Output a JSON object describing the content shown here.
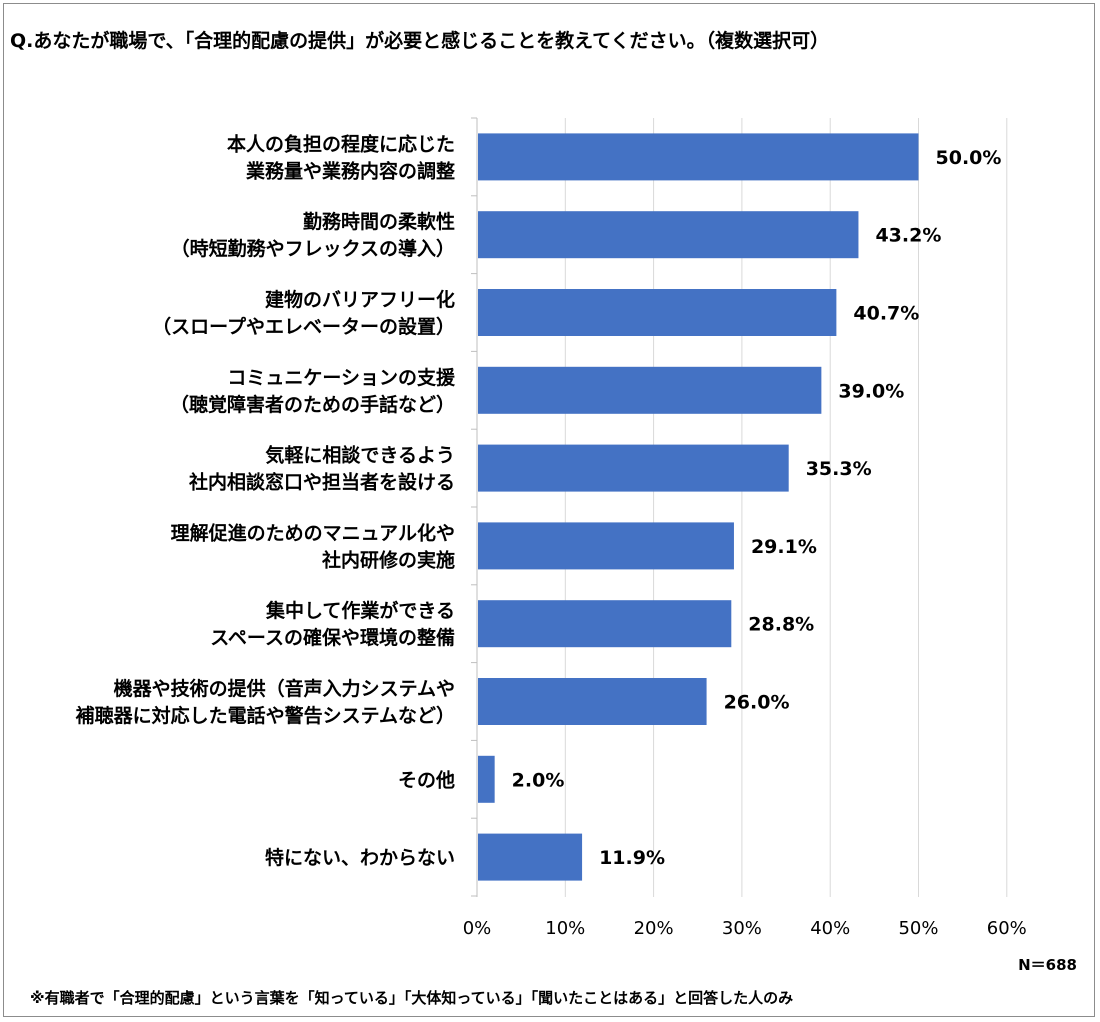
{
  "question": "Q.あなたが職場で、「合理的配慮の提供」が必要と感じることを教えてください。（複数選択可）",
  "sample_size": "N＝688",
  "footnote": "※有職者で「合理的配慮」という言葉を「知っている」「大体知っている」「聞いたことはある」と回答した人のみ",
  "colors": {
    "bar": "#4472c4",
    "grid": "#d9d9d9",
    "axis": "#bfbfbf"
  },
  "chart_data": {
    "type": "bar",
    "orientation": "horizontal",
    "title": "",
    "xlabel": "",
    "ylabel": "",
    "xlim": [
      0,
      60
    ],
    "x_ticks": [
      0,
      10,
      20,
      30,
      40,
      50,
      60
    ],
    "x_tick_labels": [
      "0%",
      "10%",
      "20%",
      "30%",
      "40%",
      "50%",
      "60%"
    ],
    "grid": true,
    "legend": "none",
    "categories": [
      [
        "本人の負担の程度に応じた",
        "業務量や業務内容の調整"
      ],
      [
        "勤務時間の柔軟性",
        "（時短勤務やフレックスの導入）"
      ],
      [
        "建物のバリアフリー化",
        "（スロープやエレベーターの設置）"
      ],
      [
        "コミュニケーションの支援",
        "（聴覚障害者のための手話など）"
      ],
      [
        "気軽に相談できるよう",
        "社内相談窓口や担当者を設ける"
      ],
      [
        "理解促進のためのマニュアル化や",
        "社内研修の実施"
      ],
      [
        "集中して作業ができる",
        "スペースの確保や環境の整備"
      ],
      [
        "機器や技術の提供（音声入力システムや",
        "補聴器に対応した電話や警告システムなど）"
      ],
      [
        "その他"
      ],
      [
        "特にない、わからない"
      ]
    ],
    "values": [
      50.0,
      43.2,
      40.7,
      39.0,
      35.3,
      29.1,
      28.8,
      26.0,
      2.0,
      11.9
    ],
    "data_labels": [
      "50.0%",
      "43.2%",
      "40.7%",
      "39.0%",
      "35.3%",
      "29.1%",
      "28.8%",
      "26.0%",
      "2.0%",
      "11.9%"
    ]
  }
}
